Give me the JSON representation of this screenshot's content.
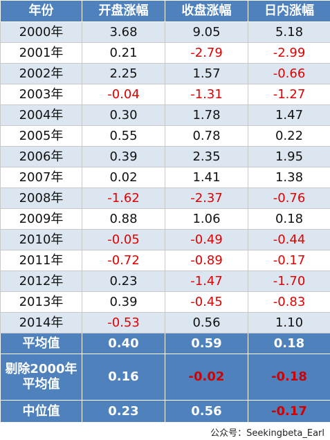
{
  "table": {
    "header": [
      "年份",
      "开盘涨幅",
      "收盘涨幅",
      "日内涨幅"
    ],
    "rows": [
      [
        "2000年",
        "3.68",
        "9.05",
        "5.18"
      ],
      [
        "2001年",
        "0.21",
        "-2.79",
        "-2.99"
      ],
      [
        "2002年",
        "2.25",
        "1.57",
        "-0.66"
      ],
      [
        "2003年",
        "-0.04",
        "-1.31",
        "-1.27"
      ],
      [
        "2004年",
        "0.30",
        "1.78",
        "1.47"
      ],
      [
        "2005年",
        "0.55",
        "0.78",
        "0.22"
      ],
      [
        "2006年",
        "0.39",
        "2.35",
        "1.95"
      ],
      [
        "2007年",
        "0.02",
        "1.41",
        "1.38"
      ],
      [
        "2008年",
        "-1.62",
        "-2.37",
        "-0.76"
      ],
      [
        "2009年",
        "0.88",
        "1.06",
        "0.18"
      ],
      [
        "2010年",
        "-0.05",
        "-0.49",
        "-0.44"
      ],
      [
        "2011年",
        "-0.72",
        "-0.89",
        "-0.17"
      ],
      [
        "2012年",
        "0.23",
        "-1.47",
        "-1.70"
      ],
      [
        "2013年",
        "0.39",
        "-0.45",
        "-0.83"
      ],
      [
        "2014年",
        "-0.53",
        "0.56",
        "1.10"
      ]
    ],
    "summary": [
      {
        "label": [
          "平均值"
        ],
        "values": [
          "0.40",
          "0.59",
          "0.18"
        ]
      },
      {
        "label": [
          "剔除2000年",
          "平均值"
        ],
        "values": [
          "0.16",
          "-0.02",
          "-0.18"
        ]
      },
      {
        "label": [
          "中位值"
        ],
        "values": [
          "0.23",
          "0.56",
          "-0.17"
        ]
      }
    ]
  },
  "footer": {
    "credit": "公众号：Seekingbeta_Earl"
  }
}
